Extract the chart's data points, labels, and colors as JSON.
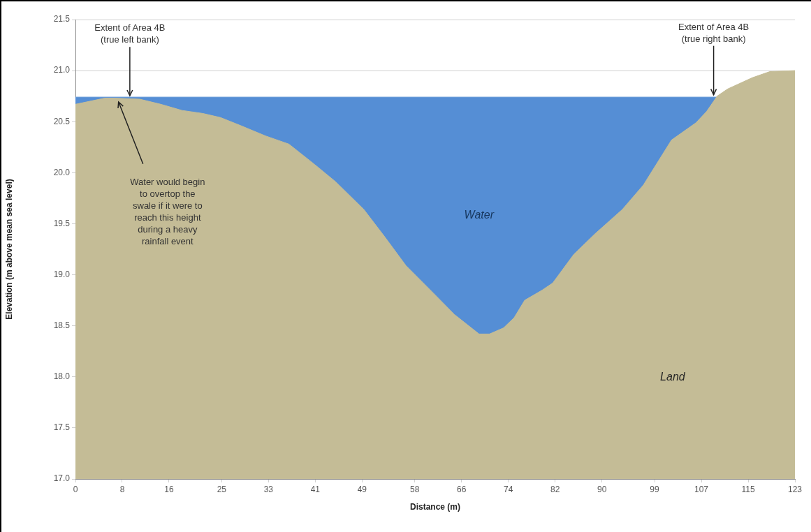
{
  "chart_data": {
    "type": "area",
    "xlabel": "Distance (m)",
    "ylabel": "Elevation (m above mean sea level)",
    "xlim": [
      0,
      123
    ],
    "xticks": [
      0,
      8,
      16,
      25,
      33,
      41,
      49,
      58,
      66,
      74,
      82,
      90,
      99,
      107,
      115,
      123
    ],
    "ylim": [
      17,
      21.5
    ],
    "yticks": [
      {
        "value": 17,
        "label": "17.0"
      },
      17.5,
      {
        "value": 18,
        "label": "18.0"
      },
      18.5,
      {
        "value": 19,
        "label": "19.0"
      },
      19.5,
      {
        "value": 20,
        "label": "20.0"
      },
      20.5,
      {
        "value": 21,
        "label": "21.0"
      },
      21.5
    ],
    "grid": "y",
    "legend": false,
    "series": [
      {
        "name": "Land",
        "color": "#c4bc96",
        "x": [
          0,
          5,
          6.8,
          11,
          14.6,
          18.2,
          21.8,
          24.8,
          28.3,
          32.5,
          36.5,
          40.9,
          44.5,
          49.3,
          52.9,
          56.5,
          61.2,
          64.8,
          69,
          70.8,
          73.2,
          75,
          76.8,
          79.8,
          81.6,
          85.2,
          88.8,
          93.5,
          97.1,
          101.9,
          106.1,
          107.9,
          109.7,
          111.5,
          115.7,
          118.7,
          123
        ],
        "values": [
          20.67,
          20.73,
          20.73,
          20.72,
          20.67,
          20.61,
          20.58,
          20.54,
          20.46,
          20.36,
          20.28,
          20.08,
          19.91,
          19.64,
          19.37,
          19.09,
          18.82,
          18.61,
          18.42,
          18.42,
          18.48,
          18.58,
          18.75,
          18.85,
          18.92,
          19.2,
          19.4,
          19.64,
          19.88,
          20.32,
          20.49,
          20.6,
          20.75,
          20.82,
          20.93,
          20.99,
          21.0
        ]
      },
      {
        "name": "Water",
        "color": "#558ed5",
        "x": [
          0,
          109.7
        ],
        "values": [
          20.74,
          20.74
        ]
      }
    ],
    "annotations": [
      {
        "text": "Extent of Area 4B (true left bank)",
        "x": 9.3,
        "y": 20.74
      },
      {
        "text": "Extent of Area 4B (true right bank)",
        "x": 109.1,
        "y": 20.75
      },
      "Water would begin to overtop the swale if it were to reach this height during a heavy rainfall event"
    ]
  }
}
